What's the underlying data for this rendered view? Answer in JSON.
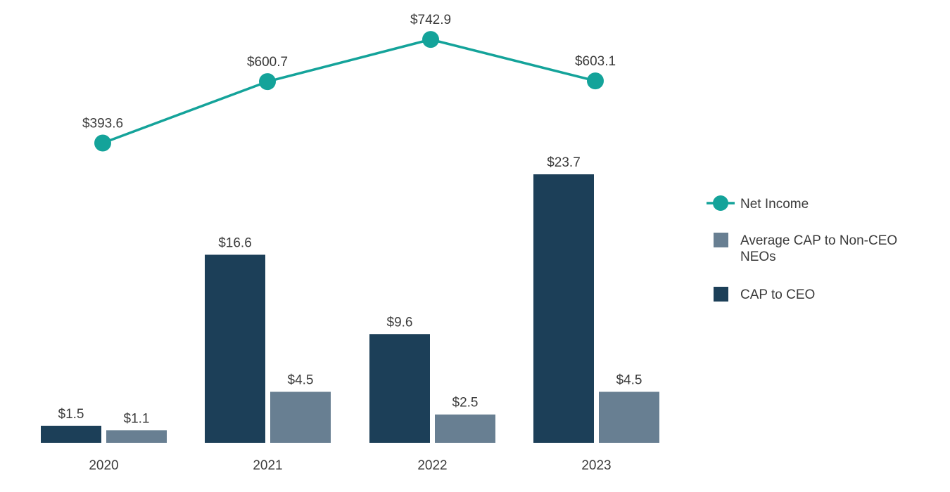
{
  "chart_data": {
    "type": "bar",
    "categories": [
      "2020",
      "2021",
      "2022",
      "2023"
    ],
    "series": [
      {
        "name": "CAP to CEO",
        "kind": "bar",
        "color": "#1c3f58",
        "values": [
          1.5,
          16.6,
          9.6,
          23.7
        ],
        "labels": [
          "$1.5",
          "$16.6",
          "$9.6",
          "$23.7"
        ]
      },
      {
        "name": "Average CAP to Non-CEO NEOs",
        "kind": "bar",
        "color": "#687f92",
        "values": [
          1.1,
          4.5,
          2.5,
          4.5
        ],
        "labels": [
          "$1.1",
          "$4.5",
          "$2.5",
          "$4.5"
        ]
      },
      {
        "name": "Net Income",
        "kind": "line",
        "color": "#14a39a",
        "values": [
          393.6,
          600.7,
          742.9,
          603.1
        ],
        "labels": [
          "$393.6",
          "$600.7",
          "$742.9",
          "$603.1"
        ]
      }
    ],
    "legend": [
      {
        "label": "Net Income",
        "series": "Net Income"
      },
      {
        "label_lines": [
          "Average CAP to Non-CEO",
          "NEOs"
        ],
        "series": "Average CAP to Non-CEO NEOs"
      },
      {
        "label": "CAP to CEO",
        "series": "CAP to CEO"
      }
    ],
    "legend_position": "right",
    "grid": false,
    "title": "",
    "xlabel": "",
    "ylabel": ""
  }
}
